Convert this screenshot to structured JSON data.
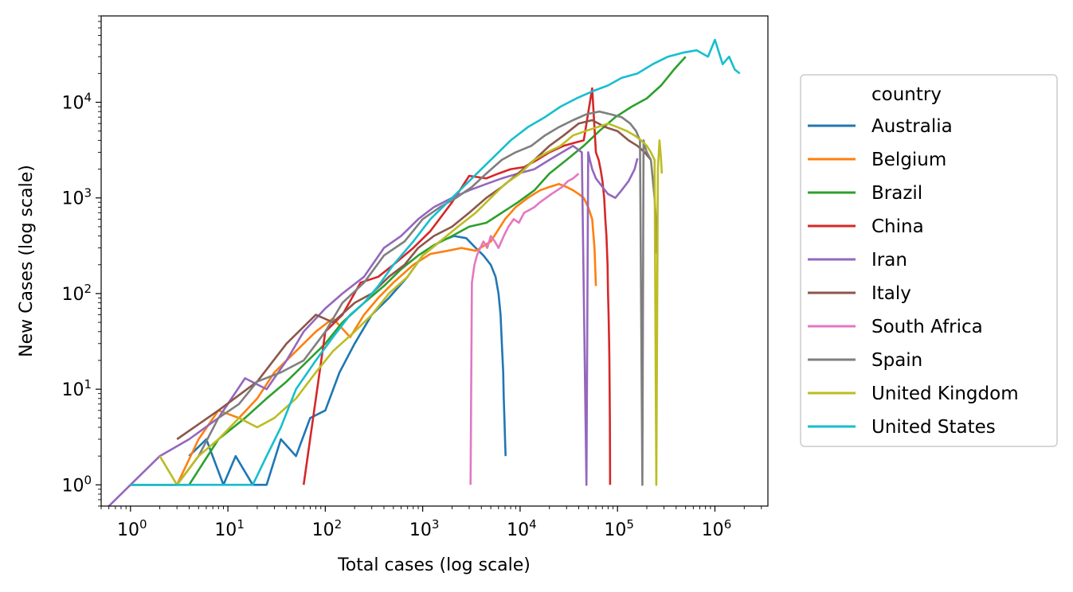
{
  "chart_data": {
    "type": "line",
    "title": "",
    "xlabel": "Total cases (log scale)",
    "ylabel": "New Cases (log scale)",
    "xscale": "log",
    "yscale": "log",
    "xlim": [
      0.5,
      3500000
    ],
    "ylim": [
      0.6,
      80000
    ],
    "grid": false,
    "legend": {
      "title": "country",
      "placement": "outside-right"
    },
    "x_ticks": [
      {
        "value": 1,
        "base": "10",
        "exp": "0"
      },
      {
        "value": 10,
        "base": "10",
        "exp": "1"
      },
      {
        "value": 100,
        "base": "10",
        "exp": "2"
      },
      {
        "value": 1000,
        "base": "10",
        "exp": "3"
      },
      {
        "value": 10000,
        "base": "10",
        "exp": "4"
      },
      {
        "value": 100000,
        "base": "10",
        "exp": "5"
      },
      {
        "value": 1000000,
        "base": "10",
        "exp": "6"
      }
    ],
    "y_ticks": [
      {
        "value": 1,
        "base": "10",
        "exp": "0"
      },
      {
        "value": 10,
        "base": "10",
        "exp": "1"
      },
      {
        "value": 100,
        "base": "10",
        "exp": "2"
      },
      {
        "value": 1000,
        "base": "10",
        "exp": "3"
      },
      {
        "value": 10000,
        "base": "10",
        "exp": "4"
      }
    ],
    "series": [
      {
        "name": "Australia",
        "color": "#1f77b4",
        "x": [
          4,
          6,
          9,
          12,
          18,
          25,
          35,
          50,
          70,
          100,
          140,
          200,
          300,
          450,
          700,
          1000,
          1500,
          2100,
          2800,
          3500,
          4200,
          5000,
          5600,
          6000,
          6300,
          6500,
          6700,
          6800,
          6900,
          7000,
          7100
        ],
        "y": [
          2,
          3,
          1,
          2,
          1,
          1,
          3,
          2,
          5,
          6,
          15,
          30,
          60,
          90,
          150,
          250,
          350,
          400,
          380,
          300,
          250,
          200,
          150,
          100,
          60,
          30,
          15,
          8,
          5,
          3,
          2
        ]
      },
      {
        "name": "Belgium",
        "color": "#ff7f0e",
        "x": [
          1,
          2,
          3,
          5,
          8,
          13,
          20,
          30,
          50,
          80,
          120,
          180,
          250,
          350,
          500,
          800,
          1200,
          1800,
          2500,
          3500,
          5000,
          7000,
          9000,
          12000,
          16000,
          20000,
          25000,
          30000,
          35000,
          40000,
          45000,
          50000,
          55000,
          58000,
          60000
        ],
        "y": [
          1,
          1,
          1,
          3,
          6,
          5,
          8,
          15,
          25,
          40,
          55,
          35,
          60,
          90,
          130,
          200,
          260,
          280,
          300,
          280,
          350,
          600,
          800,
          1000,
          1200,
          1300,
          1400,
          1300,
          1200,
          1100,
          1000,
          800,
          600,
          300,
          120
        ]
      },
      {
        "name": "Brazil",
        "color": "#2ca02c",
        "x": [
          1,
          2,
          4,
          8,
          15,
          25,
          40,
          60,
          100,
          150,
          250,
          400,
          600,
          900,
          1300,
          2000,
          3000,
          4500,
          6500,
          9500,
          14000,
          20000,
          30000,
          45000,
          65000,
          95000,
          140000,
          200000,
          280000,
          380000,
          500000
        ],
        "y": [
          1,
          1,
          1,
          3,
          5,
          8,
          12,
          18,
          30,
          50,
          80,
          120,
          180,
          250,
          320,
          400,
          500,
          550,
          700,
          900,
          1200,
          1800,
          2500,
          3500,
          5000,
          7000,
          9000,
          11000,
          15000,
          22000,
          30000
        ]
      },
      {
        "name": "China",
        "color": "#d62728",
        "x": [
          60,
          100,
          150,
          230,
          350,
          500,
          800,
          1200,
          2000,
          3000,
          4500,
          6000,
          8000,
          11000,
          15000,
          20000,
          28000,
          37000,
          45000,
          55000,
          60000,
          64000,
          67000,
          70000,
          73000,
          75000,
          77000,
          79000,
          80000,
          81000,
          82000,
          82500,
          83000,
          83500,
          84000
        ],
        "y": [
          1,
          40,
          60,
          130,
          150,
          200,
          300,
          450,
          900,
          1700,
          1600,
          1800,
          2000,
          2100,
          2500,
          3000,
          3500,
          3800,
          4000,
          14000,
          3000,
          2500,
          2000,
          1500,
          1000,
          600,
          400,
          200,
          100,
          60,
          30,
          20,
          10,
          5,
          1
        ]
      },
      {
        "name": "Iran",
        "color": "#9467bd",
        "x": [
          0.6,
          1,
          2,
          4,
          8,
          15,
          25,
          40,
          60,
          100,
          150,
          250,
          400,
          600,
          900,
          1300,
          2000,
          3000,
          4500,
          6500,
          9500,
          14000,
          20000,
          27000,
          35000,
          43000,
          48000,
          50000,
          52000,
          55000,
          60000,
          70000,
          80000,
          95000,
          110000,
          130000,
          150000,
          160000
        ],
        "y": [
          0.6,
          1,
          2,
          3,
          5,
          13,
          10,
          20,
          40,
          70,
          100,
          150,
          300,
          400,
          600,
          800,
          1000,
          1200,
          1400,
          1600,
          1800,
          2000,
          2500,
          3000,
          3500,
          3000,
          1,
          3000,
          2500,
          2000,
          1600,
          1300,
          1100,
          1000,
          1200,
          1500,
          2000,
          2600
        ]
      },
      {
        "name": "Italy",
        "color": "#8c564b",
        "x": [
          3,
          8,
          20,
          40,
          80,
          120,
          200,
          300,
          450,
          650,
          900,
          1300,
          2000,
          3000,
          4500,
          6500,
          9500,
          14000,
          20000,
          28000,
          40000,
          55000,
          75000,
          100000,
          130000,
          160000,
          190000,
          220000
        ],
        "y": [
          3,
          6,
          12,
          30,
          60,
          50,
          80,
          100,
          150,
          200,
          300,
          400,
          500,
          700,
          1000,
          1300,
          1800,
          2500,
          3500,
          4500,
          6000,
          6500,
          5500,
          5000,
          4000,
          3500,
          3000,
          2500
        ]
      },
      {
        "name": "South Africa",
        "color": "#e377c2",
        "x": [
          3100,
          3200,
          3400,
          3600,
          3900,
          4200,
          4600,
          5000,
          5500,
          6000,
          6800,
          7600,
          8600,
          9700,
          11000,
          12500,
          14000,
          16000,
          18500,
          21000,
          24000,
          27000,
          31000,
          35000,
          40000
        ],
        "y": [
          1,
          130,
          200,
          250,
          300,
          350,
          300,
          400,
          350,
          300,
          400,
          500,
          600,
          550,
          700,
          750,
          800,
          900,
          1000,
          1100,
          1200,
          1300,
          1500,
          1600,
          1800
        ]
      },
      {
        "name": "Spain",
        "color": "#7f7f7f",
        "x": [
          1,
          2,
          3,
          5,
          8,
          13,
          20,
          35,
          60,
          100,
          150,
          250,
          400,
          650,
          1000,
          1500,
          2200,
          3200,
          4500,
          6500,
          9000,
          13000,
          18000,
          25000,
          35000,
          48000,
          65000,
          85000,
          110000,
          135000,
          155000,
          170000,
          180000,
          185000,
          190000,
          200000,
          220000,
          240000,
          250000,
          255000
        ],
        "y": [
          1,
          1,
          1,
          2,
          5,
          7,
          12,
          15,
          20,
          40,
          80,
          130,
          250,
          350,
          600,
          800,
          1000,
          1300,
          1800,
          2500,
          3000,
          3500,
          4500,
          5500,
          6500,
          7500,
          8000,
          7500,
          7000,
          6000,
          5000,
          4000,
          1,
          4000,
          3500,
          3000,
          2500,
          1000,
          500,
          260
        ]
      },
      {
        "name": "United Kingdom",
        "color": "#bcbd22",
        "x": [
          2,
          3,
          5,
          8,
          13,
          20,
          30,
          50,
          80,
          120,
          200,
          300,
          450,
          700,
          1000,
          1500,
          2300,
          3500,
          5000,
          7000,
          10000,
          14000,
          19000,
          26000,
          35000,
          47000,
          62000,
          80000,
          100000,
          125000,
          150000,
          175000,
          200000,
          220000,
          240000,
          250000,
          260000,
          270000,
          280000,
          285000
        ],
        "y": [
          2,
          1,
          2,
          3,
          5,
          4,
          5,
          8,
          15,
          25,
          40,
          60,
          100,
          150,
          250,
          350,
          500,
          700,
          1000,
          1400,
          1800,
          2500,
          3000,
          3500,
          4500,
          5000,
          5500,
          6000,
          5500,
          5000,
          4500,
          4000,
          3500,
          3000,
          2500,
          1,
          2000,
          4000,
          2500,
          1800
        ]
      },
      {
        "name": "United States",
        "color": "#17becf",
        "x": [
          1,
          2,
          3,
          5,
          8,
          12,
          15,
          18,
          25,
          35,
          50,
          80,
          120,
          180,
          250,
          350,
          500,
          800,
          1200,
          2000,
          3000,
          5000,
          8000,
          12000,
          18000,
          26000,
          38000,
          55000,
          80000,
          110000,
          160000,
          230000,
          330000,
          470000,
          650000,
          850000,
          1000000,
          1200000,
          1400000,
          1600000,
          1800000
        ],
        "y": [
          1,
          1,
          1,
          1,
          1,
          1,
          1,
          1,
          2,
          4,
          10,
          20,
          35,
          60,
          80,
          120,
          200,
          350,
          600,
          1000,
          1500,
          2500,
          4000,
          5500,
          7000,
          9000,
          11000,
          13000,
          15000,
          18000,
          20000,
          25000,
          30000,
          33000,
          35000,
          30000,
          45000,
          25000,
          30000,
          22000,
          20000
        ]
      }
    ]
  }
}
